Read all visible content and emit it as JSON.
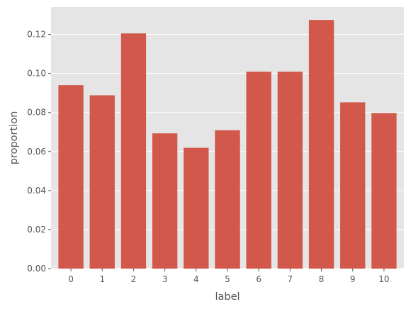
{
  "chart_data": {
    "type": "bar",
    "title": "",
    "xlabel": "label",
    "ylabel": "proportion",
    "categories": [
      "0",
      "1",
      "2",
      "3",
      "4",
      "5",
      "6",
      "7",
      "8",
      "9",
      "10"
    ],
    "values": [
      0.094,
      0.0888,
      0.1205,
      0.0693,
      0.0619,
      0.0709,
      0.1009,
      0.1009,
      0.1274,
      0.0852,
      0.0797
    ],
    "ylim": [
      0,
      0.134
    ],
    "yticks": [
      "0.00",
      "0.02",
      "0.04",
      "0.06",
      "0.08",
      "0.10",
      "0.12"
    ],
    "grid": true,
    "colors": {
      "bar": "#d1584a",
      "background": "#e5e5e5",
      "grid": "#ffffff",
      "text": "#555555"
    }
  }
}
